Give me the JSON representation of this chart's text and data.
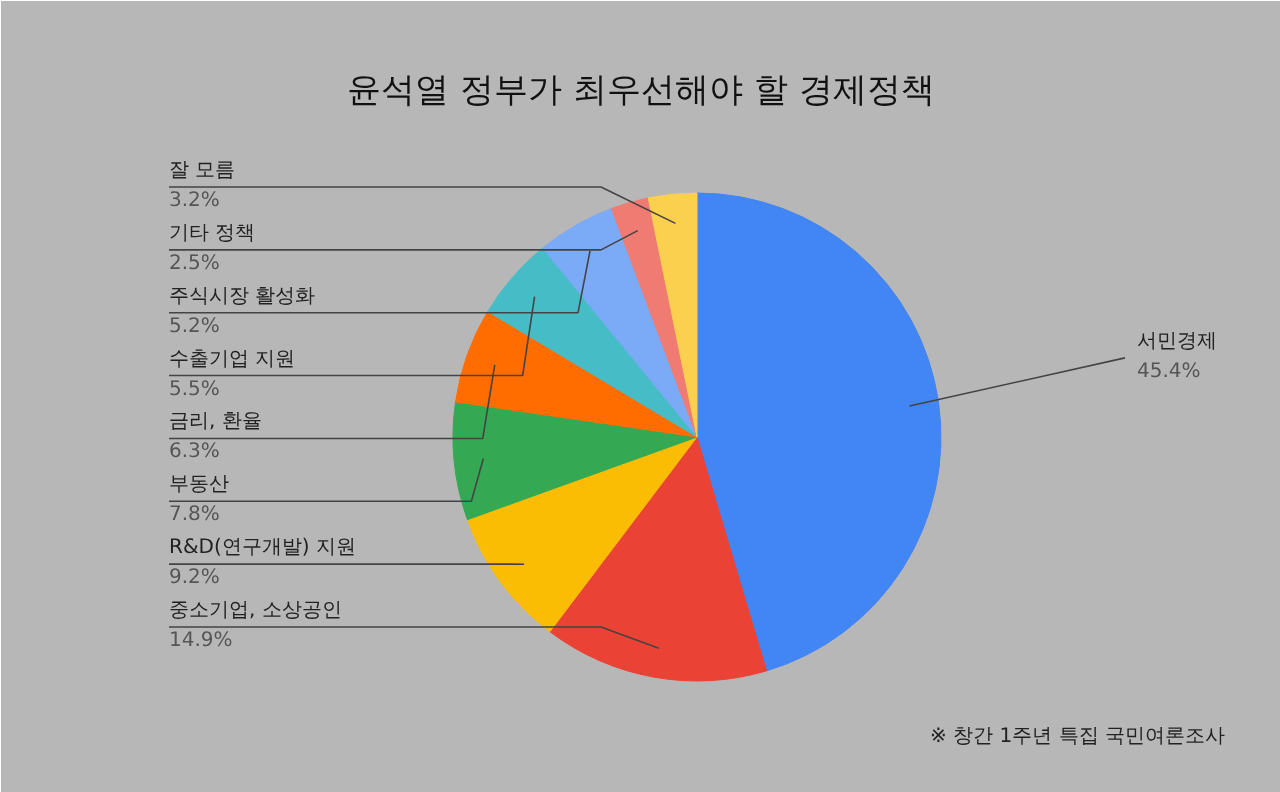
{
  "chart_data": {
    "type": "pie",
    "title": "윤석열 정부가 최우선해야 할 경제정책",
    "categories": [
      "서민경제",
      "중소기업, 소상공인",
      "R&D(연구개발) 지원",
      "부동산",
      "금리, 환율",
      "수출기업 지원",
      "주식시장 활성화",
      "기타 정책",
      "잘 모름"
    ],
    "values": [
      45.4,
      14.9,
      9.2,
      7.8,
      6.3,
      5.5,
      5.2,
      2.5,
      3.2
    ],
    "value_labels": [
      "45.4%",
      "14.9%",
      "9.2%",
      "7.8%",
      "6.3%",
      "5.5%",
      "5.2%",
      "2.5%",
      "3.2%"
    ],
    "colors": [
      "#4285f4",
      "#ea4335",
      "#fbbc04",
      "#34a853",
      "#ff6d01",
      "#46bdc6",
      "#7baaf7",
      "#f07b72",
      "#fcd04f"
    ],
    "annotations": [
      "※ 창간 1주년 특집 국민여론조사"
    ]
  }
}
